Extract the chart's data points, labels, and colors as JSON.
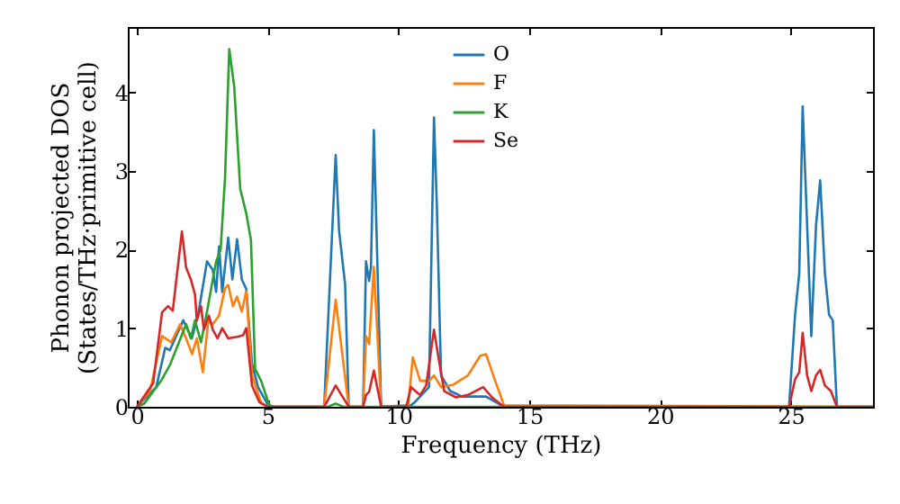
{
  "chart_data": {
    "type": "line",
    "xlabel": "Frequency (THz)",
    "ylabel": "Phonon projected DOS\n(States/THz·primitive cell)",
    "xlim": [
      -0.35,
      28.15
    ],
    "ylim": [
      0,
      4.83
    ],
    "xticks": [
      0,
      5,
      10,
      15,
      20,
      25
    ],
    "yticks": [
      0,
      1,
      2,
      3,
      4
    ],
    "legend": "top right",
    "grid": false,
    "series": [
      {
        "name": "O",
        "color": "#1f77b4",
        "x": [
          0,
          0.74,
          1.08,
          1.26,
          1.77,
          2.1,
          2.34,
          2.68,
          2.9,
          3.03,
          3.14,
          3.26,
          3.49,
          3.65,
          3.83,
          4.01,
          4.18,
          4.4,
          4.63,
          5.0,
          5.2,
          7.16,
          7.6,
          7.73,
          7.96,
          8.1,
          8.65,
          8.76,
          8.88,
          8.95,
          9.06,
          9.34,
          10.48,
          10.6,
          11.17,
          11.36,
          11.47,
          11.63,
          11.98,
          12.44,
          13.35,
          14.04,
          24.94,
          25.17,
          25.33,
          25.46,
          25.79,
          25.97,
          26.13,
          26.31,
          26.47,
          26.61,
          26.77,
          28.15
        ],
        "values": [
          0,
          0.25,
          0.75,
          0.72,
          1.1,
          0.87,
          1.17,
          1.85,
          1.74,
          1.46,
          2.04,
          1.46,
          2.15,
          1.62,
          2.13,
          1.62,
          1.5,
          0.55,
          0.25,
          0.03,
          0,
          0,
          3.2,
          2.24,
          1.56,
          0,
          0,
          1.85,
          1.6,
          1.78,
          3.52,
          0,
          0.02,
          0.05,
          0.25,
          3.68,
          2.55,
          0.4,
          0.2,
          0.13,
          0.13,
          0,
          0,
          1.17,
          1.7,
          3.82,
          0.9,
          2.3,
          2.88,
          1.7,
          1.17,
          1.1,
          0,
          0
        ]
      },
      {
        "name": "F",
        "color": "#ff7f0e",
        "x": [
          0,
          0.5,
          0.96,
          1.31,
          1.65,
          1.88,
          2.11,
          2.29,
          2.52,
          2.73,
          2.9,
          3.14,
          3.37,
          3.49,
          3.67,
          3.83,
          4.01,
          4.18,
          4.4,
          4.75,
          5.0,
          7.16,
          7.6,
          8.1,
          8.65,
          8.76,
          8.88,
          9.06,
          9.34,
          10.37,
          10.55,
          10.83,
          11.17,
          11.36,
          11.63,
          12.09,
          12.66,
          13.13,
          13.35,
          13.7,
          14.04,
          28.15
        ],
        "values": [
          0,
          0.2,
          0.9,
          0.82,
          1.05,
          0.87,
          0.67,
          0.87,
          0.44,
          1.1,
          1.05,
          1.16,
          1.51,
          1.55,
          1.28,
          1.4,
          1.21,
          1.47,
          0.4,
          0.05,
          0,
          0,
          1.36,
          0,
          0,
          0.9,
          0.8,
          1.78,
          0,
          0,
          0.63,
          0.33,
          0.33,
          0.4,
          0.25,
          0.28,
          0.4,
          0.65,
          0.67,
          0.33,
          0.02,
          0
        ]
      },
      {
        "name": "K",
        "color": "#2ca02c",
        "x": [
          0,
          0.28,
          0.96,
          1.26,
          1.88,
          2.06,
          2.22,
          2.45,
          2.68,
          2.9,
          3.03,
          3.2,
          3.37,
          3.53,
          3.72,
          3.95,
          4.18,
          4.36,
          4.52,
          4.75,
          5.0,
          5.1,
          7.3,
          7.6,
          7.9,
          28.15
        ],
        "values": [
          0,
          0.04,
          0.35,
          0.53,
          1.05,
          0.87,
          1.1,
          0.82,
          1.21,
          1.62,
          1.85,
          2.0,
          2.92,
          4.55,
          4.07,
          2.77,
          2.46,
          2.12,
          0.48,
          0.33,
          0.08,
          0,
          0,
          0.04,
          0,
          0
        ]
      },
      {
        "name": "Se",
        "color": "#d62728",
        "x": [
          0,
          0.62,
          0.96,
          1.19,
          1.37,
          1.72,
          1.88,
          2.06,
          2.22,
          2.29,
          2.45,
          2.56,
          2.75,
          2.9,
          3.08,
          3.26,
          3.49,
          3.83,
          4.06,
          4.18,
          4.4,
          4.68,
          5.0,
          7.16,
          7.6,
          8.1,
          8.65,
          8.76,
          8.88,
          9.06,
          9.34,
          10.3,
          10.48,
          10.83,
          11.06,
          11.36,
          11.52,
          11.75,
          12.2,
          12.66,
          13.24,
          13.58,
          14.04,
          24.94,
          25.17,
          25.33,
          25.46,
          25.63,
          25.79,
          25.97,
          26.13,
          26.31,
          26.54,
          26.77,
          28.15
        ],
        "values": [
          0,
          0.3,
          1.2,
          1.28,
          1.22,
          2.23,
          1.77,
          1.62,
          1.43,
          1.1,
          1.28,
          0.98,
          1.16,
          0.98,
          0.87,
          1.0,
          0.87,
          0.89,
          0.91,
          1.0,
          0.27,
          0.06,
          0,
          0,
          0.27,
          0,
          0,
          0.15,
          0.19,
          0.46,
          0,
          0,
          0.25,
          0.15,
          0.27,
          0.98,
          0.65,
          0.2,
          0.12,
          0.15,
          0.25,
          0.12,
          0,
          0,
          0.35,
          0.44,
          0.94,
          0.4,
          0.2,
          0.4,
          0.47,
          0.27,
          0.2,
          0,
          0
        ]
      }
    ]
  }
}
